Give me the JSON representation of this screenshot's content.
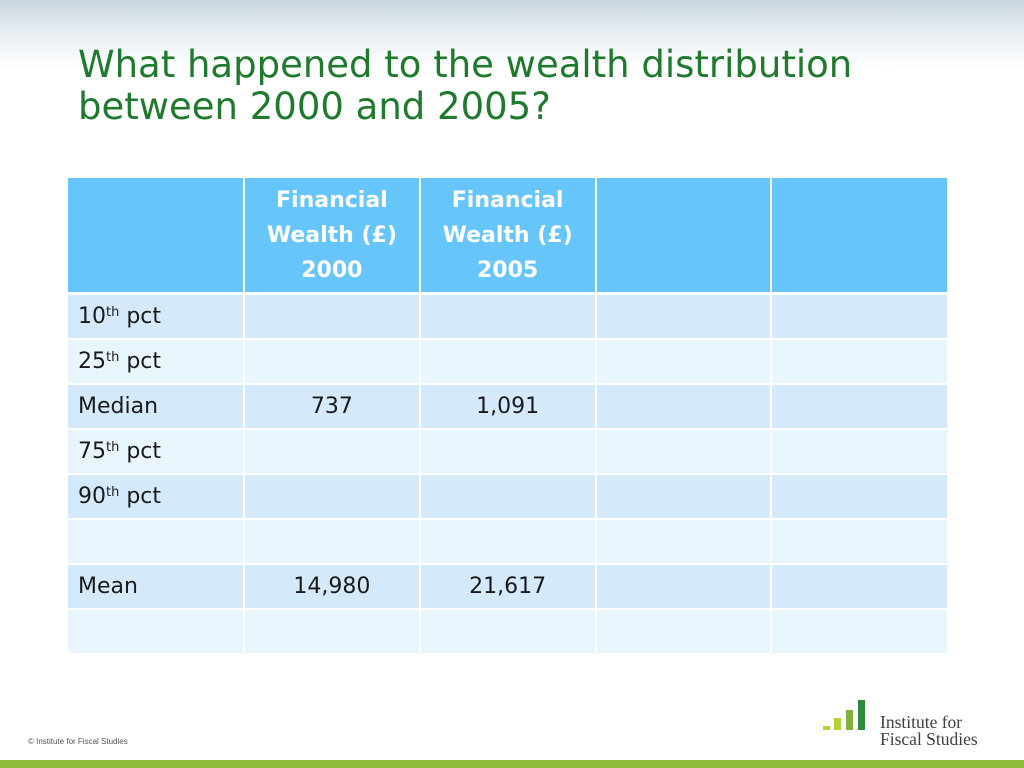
{
  "title": "What happened to the wealth distribution between 2000 and 2005?",
  "table": {
    "headers": [
      "",
      "Financial Wealth (£) 2000",
      "Financial Wealth (£) 2005",
      "",
      ""
    ],
    "header_lines": [
      [],
      [
        "Financial",
        "Wealth (£)",
        "2000"
      ],
      [
        "Financial",
        "Wealth (£)",
        "2005"
      ],
      [],
      []
    ],
    "rows": [
      {
        "base": "10",
        "sup": "th",
        "rest": " pct",
        "cells": [
          "",
          "",
          "",
          ""
        ]
      },
      {
        "base": "25",
        "sup": "th",
        "rest": " pct",
        "cells": [
          "",
          "",
          "",
          ""
        ]
      },
      {
        "base": "Median",
        "sup": "",
        "rest": "",
        "cells": [
          "737",
          "1,091",
          "",
          ""
        ]
      },
      {
        "base": "75",
        "sup": "th",
        "rest": " pct",
        "cells": [
          "",
          "",
          "",
          ""
        ]
      },
      {
        "base": "90",
        "sup": "th",
        "rest": " pct",
        "cells": [
          "",
          "",
          "",
          ""
        ]
      },
      {
        "base": "",
        "sup": "",
        "rest": "",
        "cells": [
          "",
          "",
          "",
          ""
        ]
      },
      {
        "base": "Mean",
        "sup": "",
        "rest": "",
        "cells": [
          "14,980",
          "21,617",
          "",
          ""
        ]
      },
      {
        "base": "",
        "sup": "",
        "rest": "",
        "cells": [
          "",
          "",
          "",
          ""
        ]
      }
    ]
  },
  "footer": {
    "copyright": "© Institute for Fiscal Studies",
    "logo_line1": "Institute for",
    "logo_line2": "Fiscal Studies"
  },
  "colors": {
    "title": "#1f7a2e",
    "header_bg": "#66c6fb",
    "row_dark": "#d4eafb",
    "row_light": "#e9f5fd",
    "logo_bar_light": "#b5d334",
    "logo_bar_mid": "#7fb13c",
    "logo_bar_dark": "#2e8b3d",
    "bottom_band": "#8cbc38"
  }
}
